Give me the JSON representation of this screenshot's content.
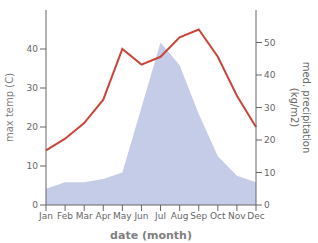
{
  "chart_data": {
    "type": "line",
    "xlabel": "date (month)",
    "ylabel": "max temp (C)",
    "y2label": "med. precipitation\n(kg/m2)",
    "categories": [
      "Jan",
      "Feb",
      "Mar",
      "Apr",
      "May",
      "Jun",
      "Jul",
      "Aug",
      "Sep",
      "Oct",
      "Nov",
      "Dec"
    ],
    "series": [
      {
        "type": "area",
        "color": "#c5cce8",
        "axis": "y2",
        "values": [
          5,
          7,
          7,
          8,
          10,
          30,
          50,
          43,
          28,
          15,
          9,
          7
        ]
      },
      {
        "type": "line",
        "color": "#c8453a",
        "values": [
          14,
          17,
          21,
          27,
          40,
          36,
          38,
          43,
          45,
          38,
          28,
          20
        ]
      }
    ],
    "ylim": [
      0,
      50
    ],
    "yticks": [
      0,
      10,
      20,
      30,
      40
    ],
    "y2lim": [
      0,
      60
    ],
    "y2ticks": [
      0,
      10,
      20,
      30,
      40,
      50
    ]
  }
}
